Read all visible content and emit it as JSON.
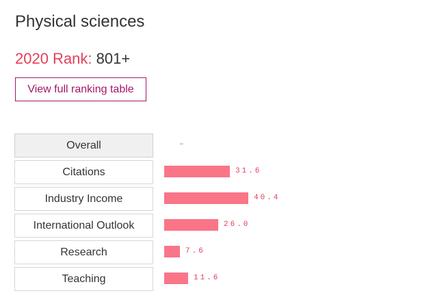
{
  "subject": {
    "title": "Physical sciences",
    "rank_label": "2020 Rank:",
    "rank_value": "801+",
    "full_table_button": "View full ranking table"
  },
  "metrics": [
    {
      "label": "Overall",
      "value": "–",
      "score": null,
      "active": true
    },
    {
      "label": "Citations",
      "value": "31.6",
      "score": 31.6,
      "active": false
    },
    {
      "label": "Industry Income",
      "value": "40.4",
      "score": 40.4,
      "active": false
    },
    {
      "label": "International Outlook",
      "value": "26.0",
      "score": 26.0,
      "active": false
    },
    {
      "label": "Research",
      "value": "7.6",
      "score": 7.6,
      "active": false
    },
    {
      "label": "Teaching",
      "value": "11.6",
      "score": 11.6,
      "active": false
    }
  ],
  "colors": {
    "accent": "#e2405a",
    "bar": "#fa7588",
    "button_border": "#a31668"
  }
}
